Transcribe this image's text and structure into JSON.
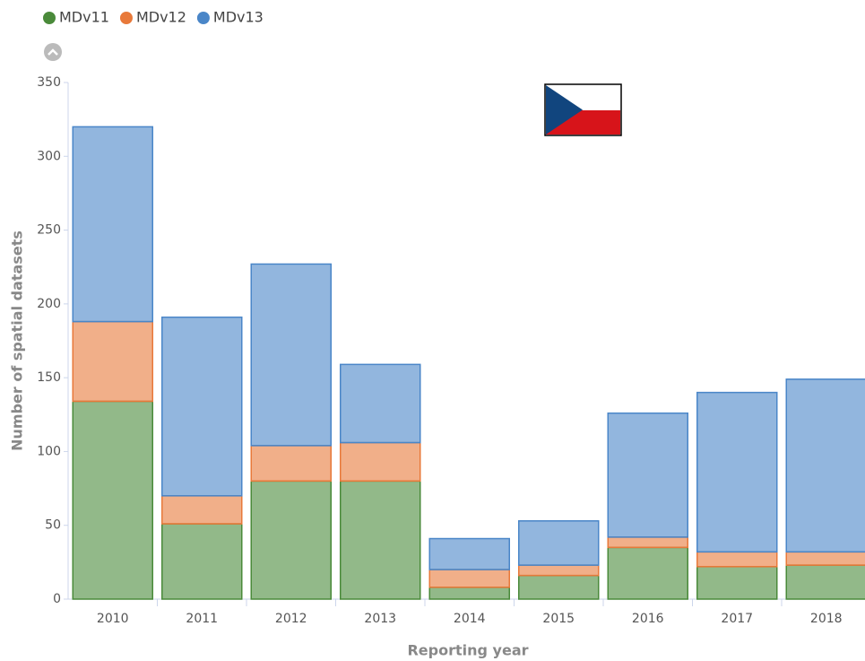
{
  "chart_data": {
    "type": "stacked_bar",
    "x_label": "Reporting year",
    "y_label": "Number of spatial datasets",
    "categories": [
      "2010",
      "2011",
      "2012",
      "2013",
      "2014",
      "2015",
      "2016",
      "2017",
      "2018"
    ],
    "series": [
      {
        "name": "MDv11",
        "color": "#4a8a3a",
        "values": [
          134,
          51,
          80,
          80,
          8,
          16,
          35,
          22,
          23
        ]
      },
      {
        "name": "MDv12",
        "color": "#e8793a",
        "values": [
          54,
          19,
          24,
          26,
          12,
          7,
          7,
          10,
          9
        ]
      },
      {
        "name": "MDv13",
        "color": "#4a86c8",
        "values": [
          132,
          121,
          123,
          53,
          21,
          30,
          84,
          108,
          117
        ]
      }
    ],
    "ylim": [
      0,
      350
    ],
    "yticks": [
      0,
      50,
      100,
      150,
      200,
      250,
      300,
      350
    ]
  }
}
